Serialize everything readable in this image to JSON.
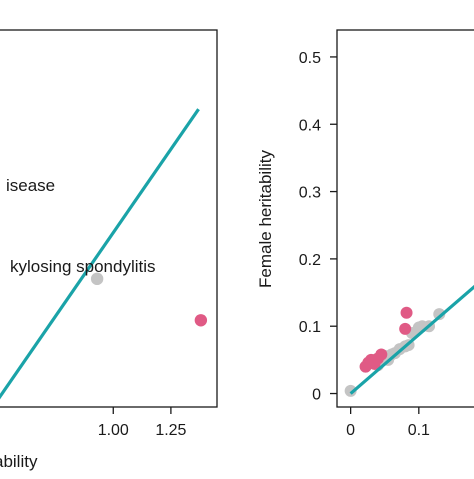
{
  "colors": {
    "fit_line": "#1aa3a8",
    "highlight_point": "#e05a85",
    "grey_point": "#c4c4c4",
    "axis": "#1a1a1a"
  },
  "chart_data": [
    {
      "type": "scatter",
      "title": "",
      "xlabel": "ability",
      "ylabel": "",
      "xlim": [
        0.5,
        1.45
      ],
      "ylim": [
        0,
        1
      ],
      "x_ticks": [
        1.0,
        1.25
      ],
      "x_tick_labels": [
        "1.00",
        "1.25"
      ],
      "y_ticks": [],
      "fit_line": {
        "x": [
          0.5,
          1.37
        ],
        "y": [
          0.02,
          0.79
        ]
      },
      "points": [
        {
          "x": 0.93,
          "y": 0.34,
          "color": "grey"
        },
        {
          "x": 1.38,
          "y": 0.23,
          "color": "pink"
        }
      ],
      "annotations": [
        "isease",
        "kylosing spondylitis"
      ],
      "grid": false
    },
    {
      "type": "scatter",
      "title": "",
      "xlabel": "",
      "ylabel": "Female heritability",
      "xlim": [
        -0.02,
        0.2
      ],
      "ylim": [
        -0.02,
        0.54
      ],
      "x_ticks": [
        0,
        0.1
      ],
      "x_tick_labels": [
        "0",
        "0.1"
      ],
      "y_ticks": [
        0,
        0.1,
        0.2,
        0.3,
        0.4,
        0.5
      ],
      "y_tick_labels": [
        "0",
        "0.1",
        "0.2",
        "0.3",
        "0.4",
        "0.5"
      ],
      "fit_line": {
        "x": [
          0.0,
          0.2
        ],
        "y": [
          0.0,
          0.175
        ]
      },
      "grey_points": {
        "x": [
          0.0,
          0.022,
          0.026,
          0.03,
          0.035,
          0.04,
          0.045,
          0.05,
          0.055,
          0.06,
          0.065,
          0.072,
          0.08,
          0.085,
          0.09,
          0.1,
          0.105,
          0.115,
          0.13
        ],
        "y": [
          0.004,
          0.04,
          0.044,
          0.046,
          0.05,
          0.042,
          0.052,
          0.056,
          0.05,
          0.058,
          0.06,
          0.066,
          0.07,
          0.072,
          0.09,
          0.098,
          0.1,
          0.1,
          0.118
        ]
      },
      "pink_points": {
        "x": [
          0.022,
          0.026,
          0.03,
          0.035,
          0.04,
          0.045,
          0.08,
          0.082
        ],
        "y": [
          0.04,
          0.046,
          0.05,
          0.044,
          0.052,
          0.058,
          0.096,
          0.12
        ]
      },
      "grid": false
    }
  ]
}
